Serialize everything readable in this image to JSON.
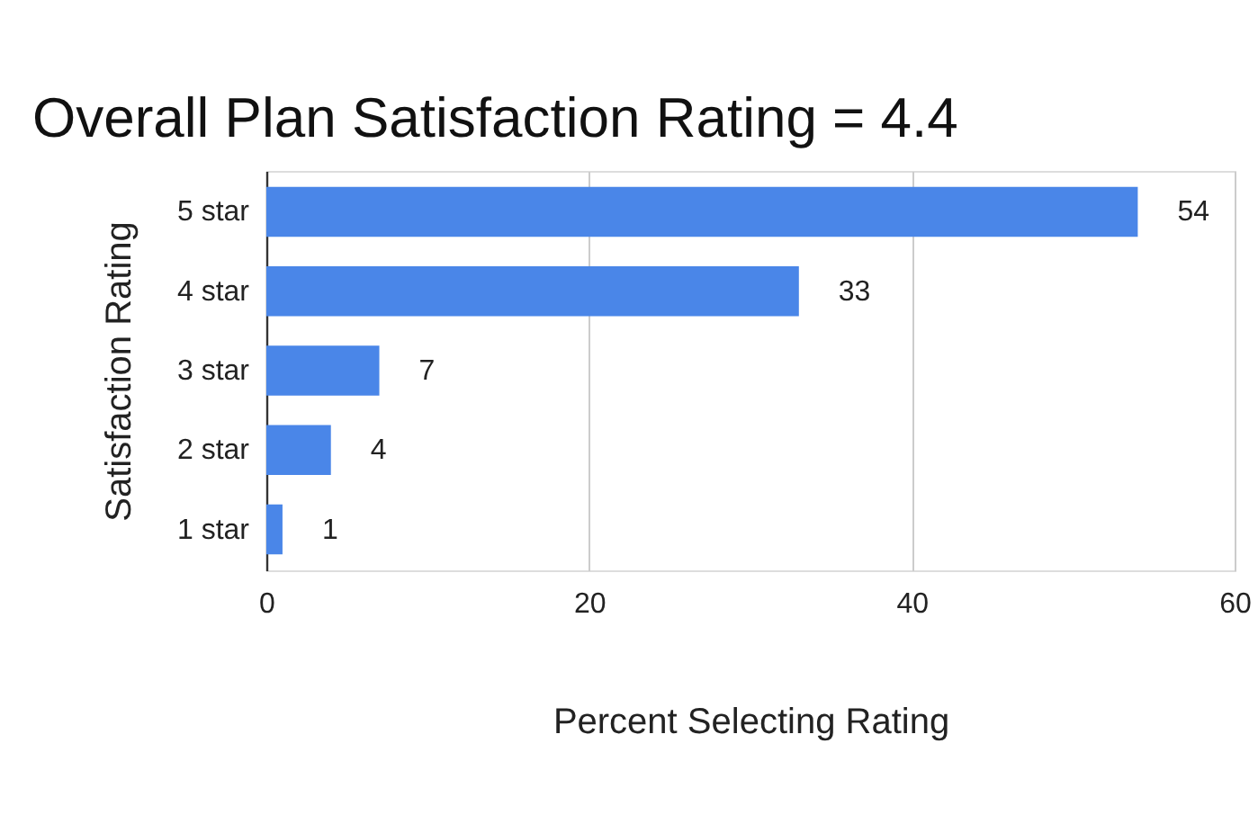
{
  "chart_data": {
    "type": "bar",
    "orientation": "horizontal",
    "title": "Overall Plan Satisfaction Rating = 4.4",
    "xlabel": "Percent Selecting Rating",
    "ylabel": "Satisfaction Rating",
    "categories": [
      "5 star",
      "4 star",
      "3 star",
      "2 star",
      "1 star"
    ],
    "values": [
      54,
      33,
      7,
      4,
      1
    ],
    "color": "#4a86e8",
    "xlim": [
      0,
      60
    ],
    "xticks": [
      0,
      20,
      40,
      60
    ],
    "grid": "x",
    "data_labels": true
  }
}
